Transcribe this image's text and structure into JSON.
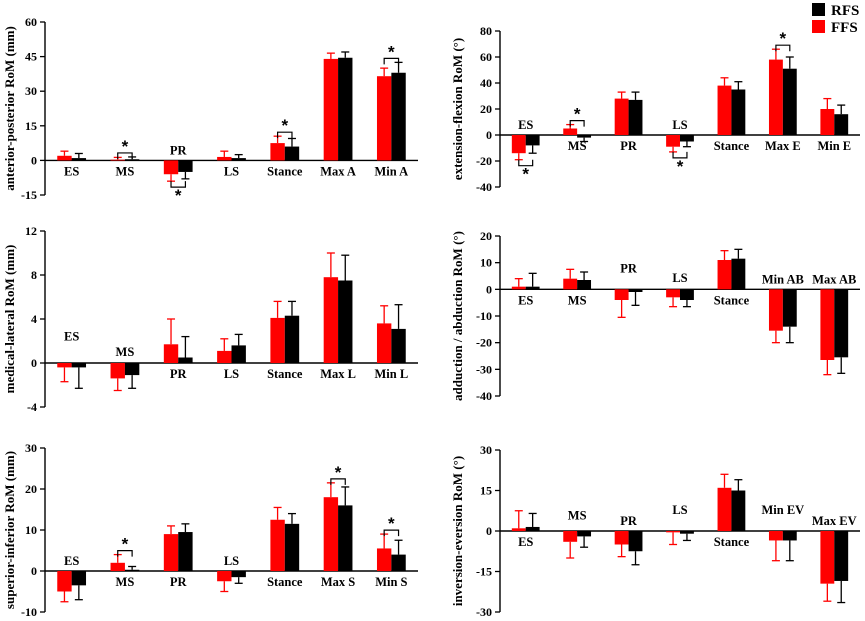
{
  "legend": [
    {
      "name": "RFS",
      "color": "#000000"
    },
    {
      "name": "FFS",
      "color": "#ff0000"
    }
  ],
  "colors": {
    "FFS": "#ff0000",
    "RFS": "#000000"
  },
  "chart_data": [
    {
      "id": "ap",
      "type": "bar",
      "ylabel": "anterior-posterior RoM (mm)",
      "ylim": [
        -15,
        60
      ],
      "yticks": [
        -15,
        0,
        15,
        30,
        45,
        60
      ],
      "categories": [
        "ES",
        "MS",
        "PR",
        "LS",
        "Stance",
        "Max A",
        "Min A"
      ],
      "label_pos": [
        "below",
        "below",
        "above",
        "below",
        "below",
        "below",
        "below"
      ],
      "series": [
        {
          "name": "FFS",
          "values": [
            2,
            0.3,
            -6,
            1.5,
            7.5,
            44,
            36.5
          ],
          "errors": [
            2,
            1,
            3,
            2.5,
            3,
            2.5,
            3.5
          ]
        },
        {
          "name": "RFS",
          "values": [
            1,
            0.5,
            -5,
            1,
            6,
            44.5,
            38
          ],
          "errors": [
            2,
            1,
            3,
            1.5,
            3.5,
            2.5,
            4.5
          ]
        }
      ],
      "significance": [
        {
          "category": "MS",
          "label": "*",
          "side": "above"
        },
        {
          "category": "PR",
          "label": "*",
          "side": "below"
        },
        {
          "category": "Stance",
          "label": "*",
          "side": "above"
        },
        {
          "category": "Min A",
          "label": "*",
          "side": "above"
        }
      ]
    },
    {
      "id": "ef",
      "type": "bar",
      "ylabel": "extension-flexion RoM (°)",
      "ylim": [
        -40,
        80
      ],
      "yticks": [
        -40,
        -20,
        0,
        20,
        40,
        60,
        80
      ],
      "categories": [
        "ES",
        "MS",
        "PR",
        "LS",
        "Stance",
        "Max E",
        "Min E"
      ],
      "label_pos": [
        "above",
        "below",
        "below",
        "above",
        "below",
        "below",
        "below"
      ],
      "series": [
        {
          "name": "FFS",
          "values": [
            -14,
            5,
            28,
            -9,
            38,
            58,
            20
          ],
          "errors": [
            5,
            3,
            5,
            4,
            6,
            8,
            8
          ]
        },
        {
          "name": "RFS",
          "values": [
            -8,
            -2,
            27,
            -5,
            35,
            51,
            16
          ],
          "errors": [
            6,
            3,
            6,
            4,
            6,
            9,
            7
          ]
        }
      ],
      "significance": [
        {
          "category": "ES",
          "label": "*",
          "side": "below"
        },
        {
          "category": "MS",
          "label": "*",
          "side": "above"
        },
        {
          "category": "LS",
          "label": "*",
          "side": "below"
        },
        {
          "category": "Max E",
          "label": "*",
          "side": "above"
        }
      ]
    },
    {
      "id": "ml",
      "type": "bar",
      "ylabel": "medical-lateral RoM (mm)",
      "ylim": [
        -4,
        12
      ],
      "yticks": [
        -4,
        0,
        4,
        8,
        12
      ],
      "categories": [
        "ES",
        "MS",
        "PR",
        "LS",
        "Stance",
        "Max L",
        "Min L"
      ],
      "label_pos": [
        "above",
        "above",
        "below",
        "below",
        "below",
        "below",
        "below"
      ],
      "series": [
        {
          "name": "FFS",
          "values": [
            -0.4,
            -1.4,
            1.7,
            1.1,
            4.1,
            7.8,
            3.6
          ],
          "errors": [
            1.3,
            1.1,
            2.3,
            1.1,
            1.5,
            2.2,
            1.6
          ]
        },
        {
          "name": "RFS",
          "values": [
            -0.4,
            -1.1,
            0.5,
            1.6,
            4.3,
            7.5,
            3.1
          ],
          "errors": [
            1.9,
            1.2,
            1.9,
            1.0,
            1.3,
            2.3,
            2.2
          ]
        }
      ],
      "significance": []
    },
    {
      "id": "aa",
      "type": "bar",
      "ylabel": "adduction / abduction RoM (°)",
      "ylim": [
        -40,
        20
      ],
      "yticks": [
        -40,
        -30,
        -20,
        -10,
        0,
        10,
        20
      ],
      "categories": [
        "ES",
        "MS",
        "PR",
        "LS",
        "Stance",
        "Min AB",
        "Max AB"
      ],
      "label_pos": [
        "below",
        "below",
        "above",
        "above",
        "below",
        "above",
        "above"
      ],
      "series": [
        {
          "name": "FFS",
          "values": [
            1,
            4,
            -4,
            -3,
            11,
            -15.5,
            -26.5
          ],
          "errors": [
            3,
            3.5,
            6.5,
            3.5,
            3.5,
            4.5,
            5.5
          ]
        },
        {
          "name": "RFS",
          "values": [
            1,
            3.5,
            -1,
            -4,
            11.5,
            -14,
            -25.5
          ],
          "errors": [
            5,
            3,
            5,
            2.5,
            3.5,
            6,
            6
          ]
        }
      ],
      "significance": []
    },
    {
      "id": "si",
      "type": "bar",
      "ylabel": "superior-inferior RoM (mm)",
      "ylim": [
        -10,
        30
      ],
      "yticks": [
        -10,
        0,
        10,
        20,
        30
      ],
      "categories": [
        "ES",
        "MS",
        "PR",
        "LS",
        "Stance",
        "Max S",
        "Min S"
      ],
      "label_pos": [
        "above",
        "below",
        "below",
        "above",
        "below",
        "below",
        "below"
      ],
      "series": [
        {
          "name": "FFS",
          "values": [
            -5,
            2,
            9,
            -2.5,
            12.5,
            18,
            5.5
          ],
          "errors": [
            2.5,
            2,
            2,
            2.5,
            3,
            3.5,
            3.5
          ]
        },
        {
          "name": "RFS",
          "values": [
            -3.5,
            0.3,
            9.5,
            -1.5,
            11.5,
            16,
            4
          ],
          "errors": [
            3.5,
            0.8,
            2,
            1.5,
            2.5,
            4.5,
            3.5
          ]
        }
      ],
      "significance": [
        {
          "category": "MS",
          "label": "*",
          "side": "above"
        },
        {
          "category": "Max S",
          "label": "*",
          "side": "above"
        },
        {
          "category": "Min S",
          "label": "*",
          "side": "above"
        }
      ]
    },
    {
      "id": "ie",
      "type": "bar",
      "ylabel": "inversion-eversion RoM (°)",
      "ylim": [
        -30,
        30
      ],
      "yticks": [
        -30,
        -15,
        0,
        15,
        30
      ],
      "categories": [
        "ES",
        "MS",
        "PR",
        "LS",
        "Stance",
        "Min EV",
        "Max EV"
      ],
      "label_pos": [
        "below",
        "above",
        "above",
        "above",
        "below",
        "above",
        "above"
      ],
      "series": [
        {
          "name": "FFS",
          "values": [
            1,
            -4,
            -5,
            -0.5,
            16,
            -3.5,
            -19.5
          ],
          "errors": [
            6.5,
            6,
            4.5,
            4.5,
            5,
            7.5,
            6.5
          ]
        },
        {
          "name": "RFS",
          "values": [
            1.5,
            -2,
            -7.5,
            -1,
            15,
            -3.5,
            -18.5
          ],
          "errors": [
            5,
            4,
            5,
            2.5,
            4,
            7.5,
            8
          ]
        }
      ],
      "significance": []
    }
  ]
}
